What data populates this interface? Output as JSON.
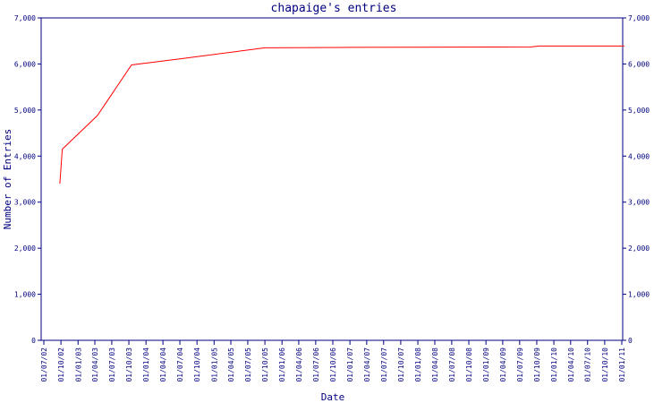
{
  "chart_data": {
    "type": "line",
    "title": "chapaige's entries",
    "xlabel": "Date",
    "ylabel": "Number of Entries",
    "ylim": [
      0,
      7000
    ],
    "y_ticks": [
      0,
      1000,
      2000,
      3000,
      4000,
      5000,
      6000,
      7000
    ],
    "y_tick_labels": [
      "0",
      "1,000",
      "2,000",
      "3,000",
      "4,000",
      "5,000",
      "6,000",
      "7,000"
    ],
    "y_axis_right": true,
    "grid": false,
    "x_tick_labels": [
      "01/07/02",
      "01/10/02",
      "01/01/03",
      "01/04/03",
      "01/07/03",
      "01/10/03",
      "01/01/04",
      "01/04/04",
      "01/07/04",
      "01/10/04",
      "01/01/05",
      "01/04/05",
      "01/07/05",
      "01/10/05",
      "01/01/06",
      "01/04/06",
      "01/07/06",
      "01/10/06",
      "01/01/07",
      "01/04/07",
      "01/07/07",
      "01/10/07",
      "01/01/08",
      "01/04/08",
      "01/07/08",
      "01/10/08",
      "01/01/09",
      "01/04/09",
      "01/07/09",
      "01/10/09",
      "01/01/10",
      "01/04/10",
      "01/07/10",
      "01/10/10",
      "01/01/11"
    ],
    "series": [
      {
        "color": "#ff0000",
        "points": [
          {
            "x": "2002-09-25",
            "y": 3400
          },
          {
            "x": "2002-10-08",
            "y": 4150
          },
          {
            "x": "2003-04-15",
            "y": 4880
          },
          {
            "x": "2003-10-15",
            "y": 5980
          },
          {
            "x": "2004-07-01",
            "y": 6110
          },
          {
            "x": "2005-10-01",
            "y": 6350
          },
          {
            "x": "2007-01-01",
            "y": 6360
          },
          {
            "x": "2009-09-01",
            "y": 6370
          },
          {
            "x": "2009-10-15",
            "y": 6390
          },
          {
            "x": "2011-01-15",
            "y": 6390
          }
        ]
      }
    ],
    "colors": {
      "axis": "#000080",
      "text": "#000080",
      "line": "#ff0000"
    }
  }
}
